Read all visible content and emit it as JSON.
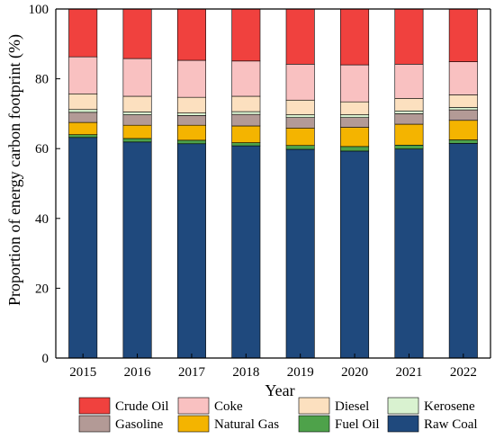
{
  "chart_data": {
    "type": "bar",
    "stacked": true,
    "title": "",
    "xlabel": "Year",
    "ylabel": "Proportion of energy carbon footprint (%)",
    "ylim": [
      0,
      100
    ],
    "yticks": [
      0,
      20,
      40,
      60,
      80,
      100
    ],
    "grid": false,
    "legend_position": "bottom",
    "categories": [
      "2015",
      "2016",
      "2017",
      "2018",
      "2019",
      "2020",
      "2021",
      "2022"
    ],
    "series": [
      {
        "name": "Raw Coal",
        "color": "#1f497d",
        "values": [
          63.2,
          61.9,
          61.4,
          60.8,
          59.8,
          59.3,
          59.9,
          61.5
        ]
      },
      {
        "name": "Fuel Oil",
        "color": "#4ea24a",
        "values": [
          0.8,
          1.0,
          1.0,
          0.9,
          1.1,
          1.3,
          1.1,
          1.0
        ]
      },
      {
        "name": "Natural Gas",
        "color": "#f4b400",
        "values": [
          3.5,
          3.8,
          4.3,
          4.8,
          5.0,
          5.5,
          6.0,
          5.6
        ]
      },
      {
        "name": "Gasoline",
        "color": "#b39a96",
        "values": [
          2.9,
          3.0,
          2.8,
          3.3,
          3.0,
          2.8,
          3.0,
          3.0
        ]
      },
      {
        "name": "Kerosene",
        "color": "#d9f2d0",
        "values": [
          0.8,
          0.8,
          0.7,
          0.8,
          0.8,
          0.8,
          0.8,
          0.7
        ]
      },
      {
        "name": "Diesel",
        "color": "#fce0bf",
        "values": [
          4.5,
          4.5,
          4.5,
          4.4,
          4.2,
          3.7,
          3.6,
          3.6
        ]
      },
      {
        "name": "Coke",
        "color": "#f9c1c1",
        "values": [
          10.6,
          10.8,
          10.6,
          10.1,
          10.3,
          10.6,
          9.8,
          9.5
        ]
      },
      {
        "name": "Crude Oil",
        "color": "#f0413e",
        "values": [
          13.7,
          14.2,
          14.7,
          14.9,
          15.8,
          16.0,
          15.8,
          15.1
        ]
      }
    ],
    "legend_order": [
      "Crude Oil",
      "Coke",
      "Diesel",
      "Kerosene",
      "Gasoline",
      "Natural Gas",
      "Fuel Oil",
      "Raw Coal"
    ]
  }
}
